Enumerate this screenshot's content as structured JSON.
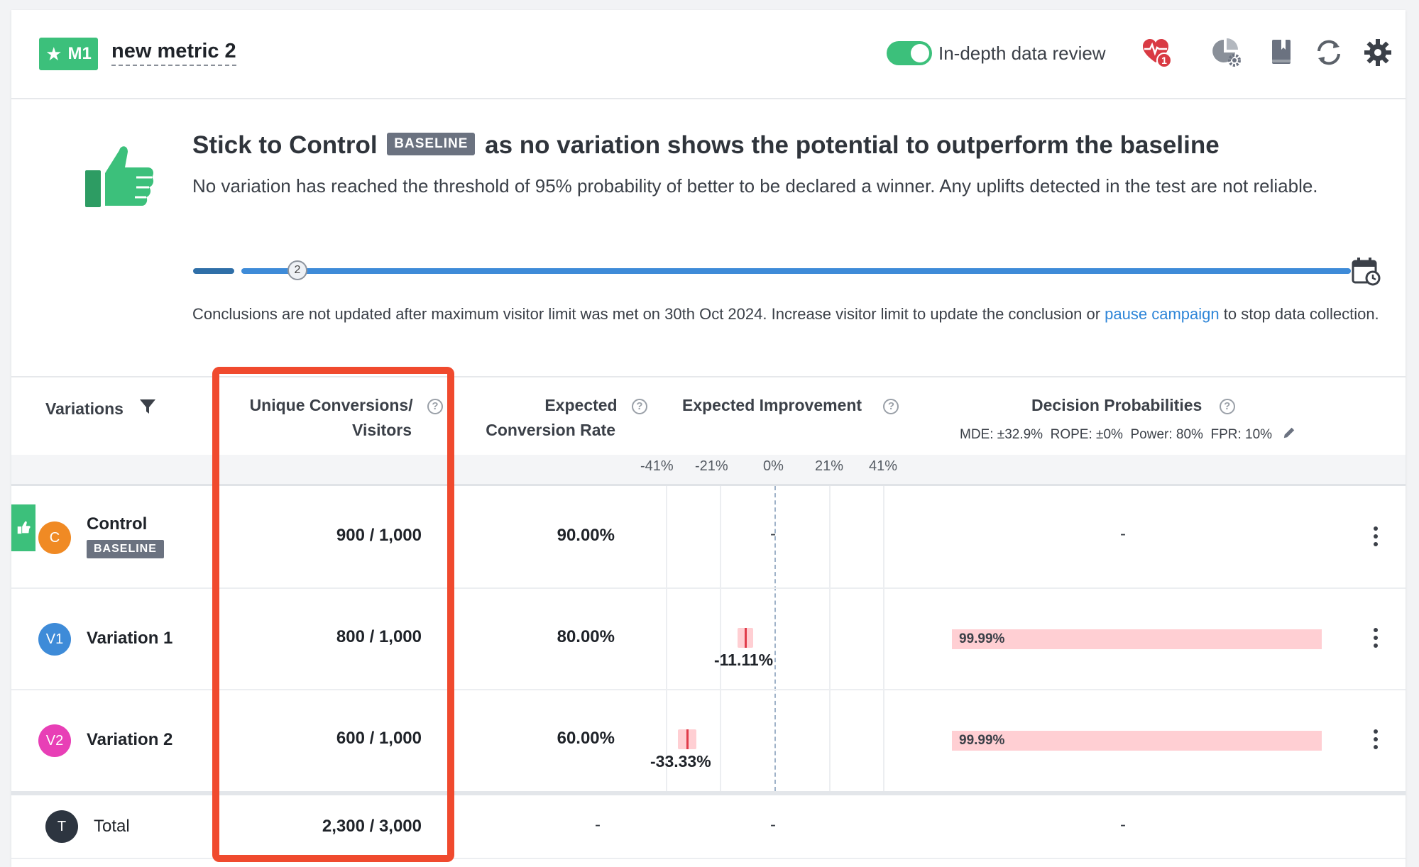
{
  "header": {
    "metric_badge": "M1",
    "metric_name": "new metric 2",
    "toggle_label": "In-depth data review",
    "health_count": "1"
  },
  "conclusion": {
    "headline_prefix": "Stick to Control",
    "baseline_tag": "BASELINE",
    "headline_suffix": "as no variation shows the potential to outperform the baseline",
    "subtext": "No variation has reached the threshold of 95% probability of better to be declared a winner. Any uplifts detected in the test are not reliable.",
    "progress_step": "2",
    "note_text": "Conclusions are not updated after maximum visitor limit was met on 30th Oct 2024. Increase visitor limit to update the conclusion or",
    "note_link": "pause campaign",
    "note_suffix": "to stop data collection."
  },
  "table": {
    "headers": {
      "variations": "Variations",
      "unique_conv_line1": "Unique Conversions/",
      "unique_conv_line2": "Visitors",
      "ecr_line1": "Expected",
      "ecr_line2": "Conversion Rate",
      "expected_improvement": "Expected Improvement",
      "decision_probabilities": "Decision Probabilities",
      "decision_settings": "MDE: ±32.9%  ROPE: ±0%  Power: 80%  FPR: 10%"
    },
    "scale_ticks": [
      "-41%",
      "-21%",
      "0%",
      "21%",
      "41%"
    ],
    "rows": [
      {
        "avatar": "C",
        "name": "Control",
        "tag": "BASELINE",
        "conv": "900 / 1,000",
        "ecr": "90.00%",
        "improvement": "-",
        "probability": "-"
      },
      {
        "avatar": "V1",
        "name": "Variation 1",
        "conv": "800 / 1,000",
        "ecr": "80.00%",
        "improvement": "-11.11%",
        "probability": "99.99%"
      },
      {
        "avatar": "V2",
        "name": "Variation 2",
        "conv": "600 / 1,000",
        "ecr": "60.00%",
        "improvement": "-33.33%",
        "probability": "99.99%"
      }
    ],
    "total": {
      "avatar": "T",
      "name": "Total",
      "conv": "2,300 / 3,000",
      "ecr": "-",
      "improvement": "-",
      "probability": "-"
    }
  },
  "colors": {
    "accent_green": "#3cc07b",
    "link_blue": "#2f86d8",
    "highlight_red": "#f04a2e",
    "control_orange": "#f08a24",
    "v1_blue": "#3e8bd8",
    "v2_pink": "#e83fb6",
    "total_dark": "#2d3540"
  },
  "icons": [
    "star-icon",
    "heart-pulse-icon",
    "segment-settings-icon",
    "book-icon",
    "refresh-icon",
    "gear-icon",
    "thumbs-up-icon",
    "calendar-clock-icon",
    "filter-icon",
    "help-icon",
    "pencil-icon",
    "kebab-menu-icon"
  ]
}
